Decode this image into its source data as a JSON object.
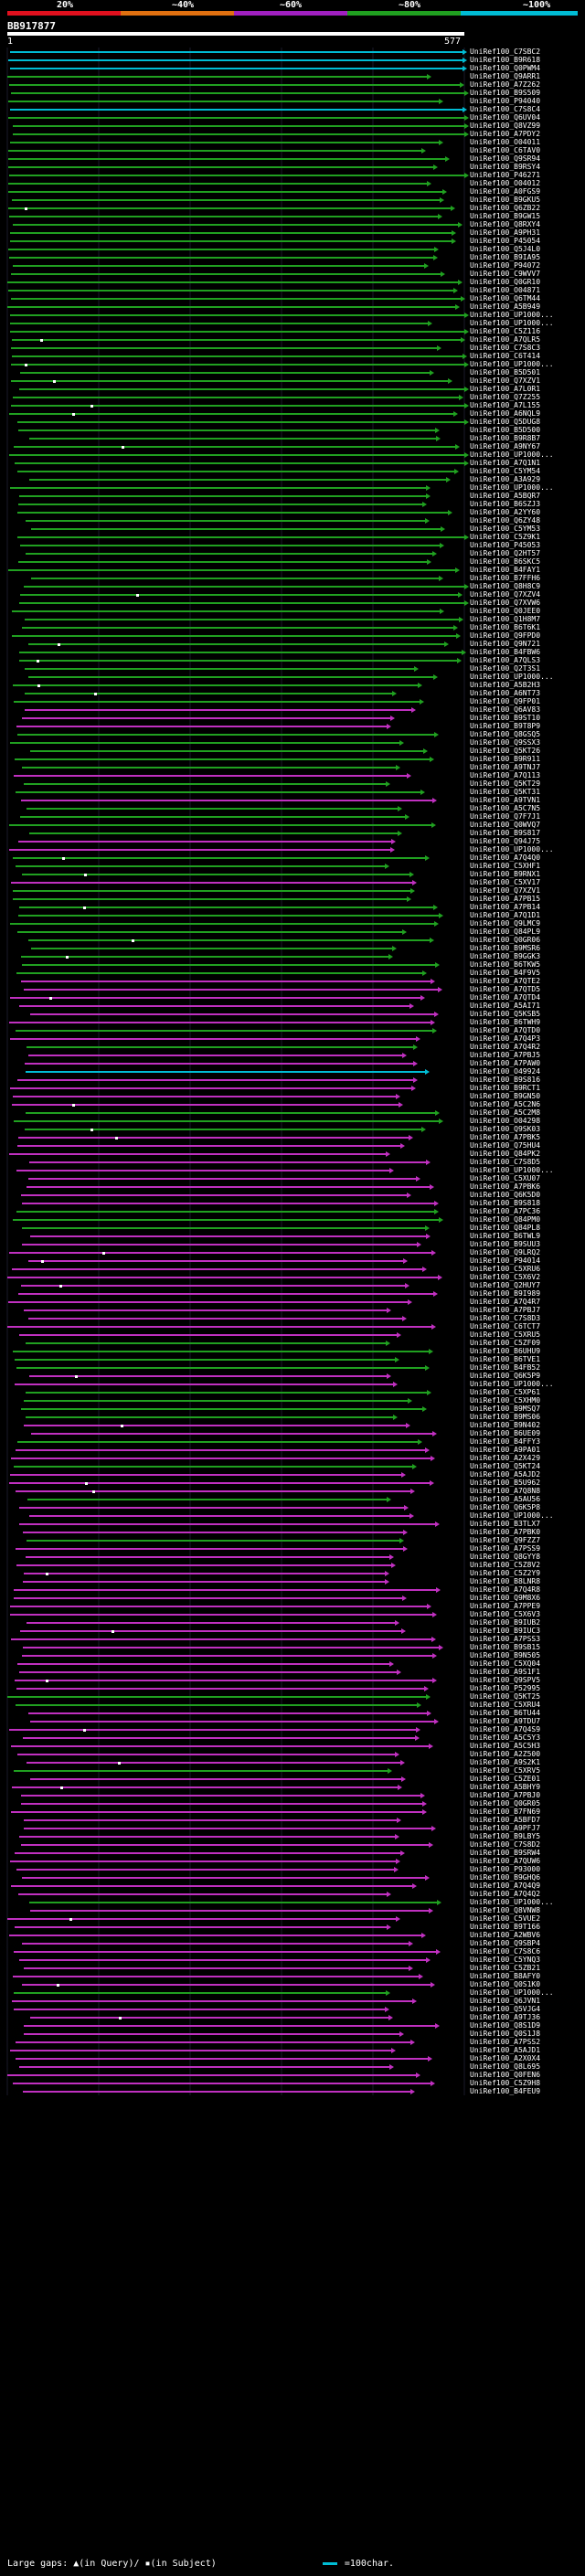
{
  "legend": {
    "labels": [
      "20%",
      "~40%",
      "~60%",
      "~80%",
      "~100%"
    ],
    "colors": [
      "#e0101e",
      "#e07010",
      "#a020c0",
      "#20a020",
      "#00bcd4"
    ]
  },
  "query": {
    "id": "BB917877",
    "start": "1",
    "end": "577"
  },
  "footer": {
    "text": "Large gaps: ▲(in Query)/ ▪(in Subject)",
    "scale_text": "=100char."
  },
  "colors": {
    "cyan": "#00bcd4",
    "green": "#20a020",
    "magenta": "#c030c0",
    "gap": "#ffffff"
  },
  "hits": [
    {
      "name": "UniRef100_C7SBC2",
      "color": "cyan"
    },
    {
      "name": "UniRef100_B9R618",
      "color": "cyan"
    },
    {
      "name": "UniRef100_Q0PWM4",
      "color": "cyan"
    },
    {
      "name": "UniRef100_Q9ARR1",
      "color": "green"
    },
    {
      "name": "UniRef100_A7Z262",
      "color": "green"
    },
    {
      "name": "UniRef100_B9S509",
      "color": "green"
    },
    {
      "name": "UniRef100_P94040",
      "color": "green"
    },
    {
      "name": "UniRef100_C7S8C4",
      "color": "cyan"
    },
    {
      "name": "UniRef100_Q6UV04",
      "color": "green"
    },
    {
      "name": "UniRef100_Q8VZ99",
      "color": "green"
    },
    {
      "name": "UniRef100_A7PDY2",
      "color": "green"
    },
    {
      "name": "UniRef100_O04011",
      "color": "green"
    },
    {
      "name": "UniRef100_C6TAV0",
      "color": "green"
    },
    {
      "name": "UniRef100_Q9SR94",
      "color": "green"
    },
    {
      "name": "UniRef100_B9RSY4",
      "color": "green"
    },
    {
      "name": "UniRef100_P46271",
      "color": "green"
    },
    {
      "name": "UniRef100_O04012",
      "color": "green"
    },
    {
      "name": "UniRef100_A0FGS9",
      "color": "green"
    },
    {
      "name": "UniRef100_B9GKU5",
      "color": "green"
    },
    {
      "name": "UniRef100_Q6ZB22",
      "color": "green"
    },
    {
      "name": "UniRef100_B9GW15",
      "color": "green"
    },
    {
      "name": "UniRef100_Q8RXY4",
      "color": "green"
    },
    {
      "name": "UniRef100_A9PH31",
      "color": "green"
    },
    {
      "name": "UniRef100_P45054",
      "color": "green"
    },
    {
      "name": "UniRef100_Q5J4L0",
      "color": "green"
    },
    {
      "name": "UniRef100_B9IA95",
      "color": "green"
    },
    {
      "name": "UniRef100_P94072",
      "color": "green"
    },
    {
      "name": "UniRef100_C9WVV7",
      "color": "green"
    },
    {
      "name": "UniRef100_Q0GR10",
      "color": "green"
    },
    {
      "name": "UniRef100_O04871",
      "color": "green"
    },
    {
      "name": "UniRef100_Q6TM44",
      "color": "green"
    },
    {
      "name": "UniRef100_A5B949",
      "color": "green"
    },
    {
      "name": "UniRef100_UP1000...",
      "color": "green"
    },
    {
      "name": "UniRef100_UP1000...",
      "color": "green"
    },
    {
      "name": "UniRef100_C5Z116",
      "color": "green"
    },
    {
      "name": "UniRef100_A7QLR5",
      "color": "green"
    },
    {
      "name": "UniRef100_C7S8C3",
      "color": "green"
    },
    {
      "name": "UniRef100_C6T414",
      "color": "green"
    },
    {
      "name": "UniRef100_UP1000...",
      "color": "green"
    },
    {
      "name": "UniRef100_B5D501",
      "color": "green"
    },
    {
      "name": "UniRef100_Q7XZV1",
      "color": "green"
    },
    {
      "name": "UniRef100_A7L0R1",
      "color": "green"
    },
    {
      "name": "UniRef100_Q7Z255",
      "color": "green"
    },
    {
      "name": "UniRef100_A7L155",
      "color": "green"
    },
    {
      "name": "UniRef100_A6NQL9",
      "color": "green"
    },
    {
      "name": "UniRef100_Q5DUG8",
      "color": "green"
    },
    {
      "name": "UniRef100_B5D500",
      "color": "green"
    },
    {
      "name": "UniRef100_B9R8B7",
      "color": "green"
    },
    {
      "name": "UniRef100_A9NY67",
      "color": "green"
    },
    {
      "name": "UniRef100_UP1000...",
      "color": "green"
    },
    {
      "name": "UniRef100_A7Q1N1",
      "color": "green"
    },
    {
      "name": "UniRef100_C5YM54",
      "color": "green"
    },
    {
      "name": "UniRef100_A3A929",
      "color": "green"
    },
    {
      "name": "UniRef100_UP1000...",
      "color": "green"
    },
    {
      "name": "UniRef100_A5BQR7",
      "color": "green"
    },
    {
      "name": "UniRef100_B6SZJ3",
      "color": "green"
    },
    {
      "name": "UniRef100_A2YY60",
      "color": "green"
    },
    {
      "name": "UniRef100_Q6ZY48",
      "color": "green"
    },
    {
      "name": "UniRef100_C5YM53",
      "color": "green"
    },
    {
      "name": "UniRef100_C5Z9K1",
      "color": "green"
    },
    {
      "name": "UniRef100_P45053",
      "color": "green"
    },
    {
      "name": "UniRef100_Q2HT57",
      "color": "green"
    },
    {
      "name": "UniRef100_B6SKC5",
      "color": "green"
    },
    {
      "name": "UniRef100_B4FAY1",
      "color": "green"
    },
    {
      "name": "UniRef100_B7FFH6",
      "color": "green"
    },
    {
      "name": "UniRef100_Q8H8C9",
      "color": "green"
    },
    {
      "name": "UniRef100_Q7XZV4",
      "color": "green"
    },
    {
      "name": "UniRef100_Q7XVW6",
      "color": "green"
    },
    {
      "name": "UniRef100_Q0JEE0",
      "color": "green"
    },
    {
      "name": "UniRef100_Q1H8M7",
      "color": "green"
    },
    {
      "name": "UniRef100_B6T6K1",
      "color": "green"
    },
    {
      "name": "UniRef100_Q9FPD0",
      "color": "green"
    },
    {
      "name": "UniRef100_Q9N721",
      "color": "green"
    },
    {
      "name": "UniRef100_B4FBW6",
      "color": "green"
    },
    {
      "name": "UniRef100_A7QLS3",
      "color": "green"
    },
    {
      "name": "UniRef100_Q2T3S1",
      "color": "green"
    },
    {
      "name": "UniRef100_UP1000...",
      "color": "green"
    },
    {
      "name": "UniRef100_A5B2H3",
      "color": "green"
    },
    {
      "name": "UniRef100_A6NT73",
      "color": "green"
    },
    {
      "name": "UniRef100_Q9FP01",
      "color": "green"
    },
    {
      "name": "UniRef100_Q6AV83",
      "color": "magenta"
    },
    {
      "name": "UniRef100_B9ST10",
      "color": "magenta"
    },
    {
      "name": "UniRef100_B9T8P9",
      "color": "magenta"
    },
    {
      "name": "UniRef100_Q8GSQ5",
      "color": "green"
    },
    {
      "name": "UniRef100_Q9SSX3",
      "color": "green"
    },
    {
      "name": "UniRef100_Q5KT26",
      "color": "green"
    },
    {
      "name": "UniRef100_B9R911",
      "color": "green"
    },
    {
      "name": "UniRef100_A9TNJ7",
      "color": "green"
    },
    {
      "name": "UniRef100_A7Q113",
      "color": "magenta"
    },
    {
      "name": "UniRef100_Q5KT29",
      "color": "green"
    },
    {
      "name": "UniRef100_Q5KT31",
      "color": "green"
    },
    {
      "name": "UniRef100_A9TVN1",
      "color": "magenta"
    },
    {
      "name": "UniRef100_A5C7N5",
      "color": "green"
    },
    {
      "name": "UniRef100_Q7F7J1",
      "color": "green"
    },
    {
      "name": "UniRef100_Q0WVQ7",
      "color": "green"
    },
    {
      "name": "UniRef100_B9S817",
      "color": "green"
    },
    {
      "name": "UniRef100_Q94J75",
      "color": "magenta"
    },
    {
      "name": "UniRef100_UP1000...",
      "color": "magenta"
    },
    {
      "name": "UniRef100_A7Q4Q0",
      "color": "green"
    },
    {
      "name": "UniRef100_C5XHF1",
      "color": "green"
    },
    {
      "name": "UniRef100_B9RNX1",
      "color": "green"
    },
    {
      "name": "UniRef100_C5XV17",
      "color": "magenta"
    },
    {
      "name": "UniRef100_Q7XZV1",
      "color": "green"
    },
    {
      "name": "UniRef100_A7PB15",
      "color": "green"
    },
    {
      "name": "UniRef100_A7PB14",
      "color": "green"
    },
    {
      "name": "UniRef100_A7Q1D1",
      "color": "green"
    },
    {
      "name": "UniRef100_Q9LMC9",
      "color": "green"
    },
    {
      "name": "UniRef100_Q84PL9",
      "color": "green"
    },
    {
      "name": "UniRef100_Q0GR06",
      "color": "green"
    },
    {
      "name": "UniRef100_B9MSR6",
      "color": "green"
    },
    {
      "name": "UniRef100_B9GGK3",
      "color": "green"
    },
    {
      "name": "UniRef100_B6TKW5",
      "color": "green"
    },
    {
      "name": "UniRef100_B4F9V5",
      "color": "green"
    },
    {
      "name": "UniRef100_A7QTE2",
      "color": "magenta"
    },
    {
      "name": "UniRef100_A7QTD5",
      "color": "magenta"
    },
    {
      "name": "UniRef100_A7QTD4",
      "color": "magenta"
    },
    {
      "name": "UniRef100_A5AI71",
      "color": "magenta"
    },
    {
      "name": "UniRef100_Q5KSB5",
      "color": "magenta"
    },
    {
      "name": "UniRef100_B6TWH9",
      "color": "magenta"
    },
    {
      "name": "UniRef100_A7QTD0",
      "color": "green"
    },
    {
      "name": "UniRef100_A7Q4P3",
      "color": "magenta"
    },
    {
      "name": "UniRef100_A7Q4R2",
      "color": "green"
    },
    {
      "name": "UniRef100_A7PBJ5",
      "color": "magenta"
    },
    {
      "name": "UniRef100_A7PAW0",
      "color": "magenta"
    },
    {
      "name": "UniRef100_O49924",
      "color": "cyan"
    },
    {
      "name": "UniRef100_B9S816",
      "color": "magenta"
    },
    {
      "name": "UniRef100_B9RCT1",
      "color": "magenta"
    },
    {
      "name": "UniRef100_B9GN50",
      "color": "magenta"
    },
    {
      "name": "UniRef100_A5C2N6",
      "color": "magenta"
    },
    {
      "name": "UniRef100_A5C2M8",
      "color": "green"
    },
    {
      "name": "UniRef100_O04298",
      "color": "green"
    },
    {
      "name": "UniRef100_Q9SK03",
      "color": "green"
    },
    {
      "name": "UniRef100_A7PBK5",
      "color": "magenta"
    },
    {
      "name": "UniRef100_Q75HU4",
      "color": "magenta"
    },
    {
      "name": "UniRef100_Q84PK2",
      "color": "magenta"
    },
    {
      "name": "UniRef100_C7S8D5",
      "color": "magenta"
    },
    {
      "name": "UniRef100_UP1000...",
      "color": "magenta"
    },
    {
      "name": "UniRef100_C5XU07",
      "color": "magenta"
    },
    {
      "name": "UniRef100_A7PBK6",
      "color": "magenta"
    },
    {
      "name": "UniRef100_Q6K5D0",
      "color": "magenta"
    },
    {
      "name": "UniRef100_B9S818",
      "color": "magenta"
    },
    {
      "name": "UniRef100_A7PC36",
      "color": "green"
    },
    {
      "name": "UniRef100_Q84PM0",
      "color": "green"
    },
    {
      "name": "UniRef100_Q84PL8",
      "color": "green"
    },
    {
      "name": "UniRef100_B6TWL9",
      "color": "magenta"
    },
    {
      "name": "UniRef100_B9SUU3",
      "color": "magenta"
    },
    {
      "name": "UniRef100_Q9LRQ2",
      "color": "magenta"
    },
    {
      "name": "UniRef100_P94014",
      "color": "magenta"
    },
    {
      "name": "UniRef100_C5XRU6",
      "color": "magenta"
    },
    {
      "name": "UniRef100_C5X6V2",
      "color": "magenta"
    },
    {
      "name": "UniRef100_Q2HUY7",
      "color": "magenta"
    },
    {
      "name": "UniRef100_B9I989",
      "color": "magenta"
    },
    {
      "name": "UniRef100_A7Q4R7",
      "color": "magenta"
    },
    {
      "name": "UniRef100_A7PBJ7",
      "color": "magenta"
    },
    {
      "name": "UniRef100_C7S8D3",
      "color": "magenta"
    },
    {
      "name": "UniRef100_C6TCT7",
      "color": "magenta"
    },
    {
      "name": "UniRef100_C5XRU5",
      "color": "magenta"
    },
    {
      "name": "UniRef100_C5ZF09",
      "color": "green"
    },
    {
      "name": "UniRef100_B6UHU9",
      "color": "green"
    },
    {
      "name": "UniRef100_B6TVE1",
      "color": "green"
    },
    {
      "name": "UniRef100_B4FB52",
      "color": "green"
    },
    {
      "name": "UniRef100_Q6K5P9",
      "color": "magenta"
    },
    {
      "name": "UniRef100_UP1000...",
      "color": "magenta"
    },
    {
      "name": "UniRef100_C5XP61",
      "color": "green"
    },
    {
      "name": "UniRef100_C5XHM0",
      "color": "green"
    },
    {
      "name": "UniRef100_B9MSQ7",
      "color": "green"
    },
    {
      "name": "UniRef100_B9MS06",
      "color": "green"
    },
    {
      "name": "UniRef100_B9N402",
      "color": "magenta"
    },
    {
      "name": "UniRef100_B6UE09",
      "color": "magenta"
    },
    {
      "name": "UniRef100_B4FFY3",
      "color": "green"
    },
    {
      "name": "UniRef100_A9PA01",
      "color": "magenta"
    },
    {
      "name": "UniRef100_A2X429",
      "color": "magenta"
    },
    {
      "name": "UniRef100_Q5KT24",
      "color": "green"
    },
    {
      "name": "UniRef100_A5AJD2",
      "color": "magenta"
    },
    {
      "name": "UniRef100_B5U962",
      "color": "magenta"
    },
    {
      "name": "UniRef100_A7Q8N8",
      "color": "magenta"
    },
    {
      "name": "UniRef100_A5AU56",
      "color": "green"
    },
    {
      "name": "UniRef100_Q6K5P8",
      "color": "magenta"
    },
    {
      "name": "UniRef100_UP1000...",
      "color": "magenta"
    },
    {
      "name": "UniRef100_B3TLX7",
      "color": "magenta"
    },
    {
      "name": "UniRef100_A7PBK0",
      "color": "magenta"
    },
    {
      "name": "UniRef100_Q9FZZ7",
      "color": "green"
    },
    {
      "name": "UniRef100_A7PSS9",
      "color": "magenta"
    },
    {
      "name": "UniRef100_Q8GYY8",
      "color": "magenta"
    },
    {
      "name": "UniRef100_C5Z8V2",
      "color": "magenta"
    },
    {
      "name": "UniRef100_C5Z2Y9",
      "color": "magenta"
    },
    {
      "name": "UniRef100_B8LNR8",
      "color": "magenta"
    },
    {
      "name": "UniRef100_A7Q4R8",
      "color": "magenta"
    },
    {
      "name": "UniRef100_Q9M8X6",
      "color": "magenta"
    },
    {
      "name": "UniRef100_A7PPE9",
      "color": "magenta"
    },
    {
      "name": "UniRef100_C5X6V3",
      "color": "magenta"
    },
    {
      "name": "UniRef100_B9IUB2",
      "color": "magenta"
    },
    {
      "name": "UniRef100_B9IUC3",
      "color": "magenta"
    },
    {
      "name": "UniRef100_A7PSS3",
      "color": "magenta"
    },
    {
      "name": "UniRef100_B9SB15",
      "color": "magenta"
    },
    {
      "name": "UniRef100_B9N505",
      "color": "magenta"
    },
    {
      "name": "UniRef100_C5XQ04",
      "color": "magenta"
    },
    {
      "name": "UniRef100_A9S1F1",
      "color": "magenta"
    },
    {
      "name": "UniRef100_Q9SPV5",
      "color": "magenta"
    },
    {
      "name": "UniRef100_P52995",
      "color": "magenta"
    },
    {
      "name": "UniRef100_Q5KT25",
      "color": "green"
    },
    {
      "name": "UniRef100_C5XRU4",
      "color": "green"
    },
    {
      "name": "UniRef100_B6TU44",
      "color": "magenta"
    },
    {
      "name": "UniRef100_A9TDU7",
      "color": "magenta"
    },
    {
      "name": "UniRef100_A7Q4S9",
      "color": "magenta"
    },
    {
      "name": "UniRef100_A5C5Y3",
      "color": "magenta"
    },
    {
      "name": "UniRef100_A5C5H3",
      "color": "magenta"
    },
    {
      "name": "UniRef100_A2Z500",
      "color": "magenta"
    },
    {
      "name": "UniRef100_A9S2K1",
      "color": "magenta"
    },
    {
      "name": "UniRef100_C5XRV5",
      "color": "green"
    },
    {
      "name": "UniRef100_C5ZE01",
      "color": "magenta"
    },
    {
      "name": "UniRef100_A5BHY9",
      "color": "magenta"
    },
    {
      "name": "UniRef100_A7PBJ0",
      "color": "magenta"
    },
    {
      "name": "UniRef100_Q0GR05",
      "color": "magenta"
    },
    {
      "name": "UniRef100_B7FN69",
      "color": "magenta"
    },
    {
      "name": "UniRef100_A5BFD7",
      "color": "magenta"
    },
    {
      "name": "UniRef100_A9PFJ7",
      "color": "magenta"
    },
    {
      "name": "UniRef100_B9LBY5",
      "color": "magenta"
    },
    {
      "name": "UniRef100_C7S8D2",
      "color": "magenta"
    },
    {
      "name": "UniRef100_B9SRW4",
      "color": "magenta"
    },
    {
      "name": "UniRef100_A7QUW6",
      "color": "magenta"
    },
    {
      "name": "UniRef100_P93000",
      "color": "magenta"
    },
    {
      "name": "UniRef100_B9GHQ6",
      "color": "magenta"
    },
    {
      "name": "UniRef100_A7Q4Q9",
      "color": "magenta"
    },
    {
      "name": "UniRef100_A7Q4Q2",
      "color": "magenta"
    },
    {
      "name": "UniRef100_UP1000...",
      "color": "green"
    },
    {
      "name": "UniRef100_Q8VNW8",
      "color": "magenta"
    },
    {
      "name": "UniRef100_C5VUE2",
      "color": "magenta"
    },
    {
      "name": "UniRef100_B9T166",
      "color": "magenta"
    },
    {
      "name": "UniRef100_A2WBV6",
      "color": "magenta"
    },
    {
      "name": "UniRef100_Q9SBP4",
      "color": "magenta"
    },
    {
      "name": "UniRef100_C7S8C6",
      "color": "magenta"
    },
    {
      "name": "UniRef100_C5YNQ3",
      "color": "magenta"
    },
    {
      "name": "UniRef100_C5ZB21",
      "color": "magenta"
    },
    {
      "name": "UniRef100_B8AFY0",
      "color": "magenta"
    },
    {
      "name": "UniRef100_Q0S1K0",
      "color": "magenta"
    },
    {
      "name": "UniRef100_UP1000...",
      "color": "green"
    },
    {
      "name": "UniRef100_Q6JVN1",
      "color": "magenta"
    },
    {
      "name": "UniRef100_Q5VJG4",
      "color": "magenta"
    },
    {
      "name": "UniRef100_A9TJ36",
      "color": "magenta"
    },
    {
      "name": "UniRef100_Q8S1D9",
      "color": "magenta"
    },
    {
      "name": "UniRef100_Q0S1J8",
      "color": "magenta"
    },
    {
      "name": "UniRef100_A7PSS2",
      "color": "magenta"
    },
    {
      "name": "UniRef100_A5AJD1",
      "color": "magenta"
    },
    {
      "name": "UniRef100_A2X0X4",
      "color": "magenta"
    },
    {
      "name": "UniRef100_Q8L695",
      "color": "magenta"
    },
    {
      "name": "UniRef100_Q0FEN6",
      "color": "magenta"
    },
    {
      "name": "UniRef100_C5Z9H8",
      "color": "magenta"
    },
    {
      "name": "UniRef100_B4FEU9",
      "color": "magenta"
    }
  ]
}
